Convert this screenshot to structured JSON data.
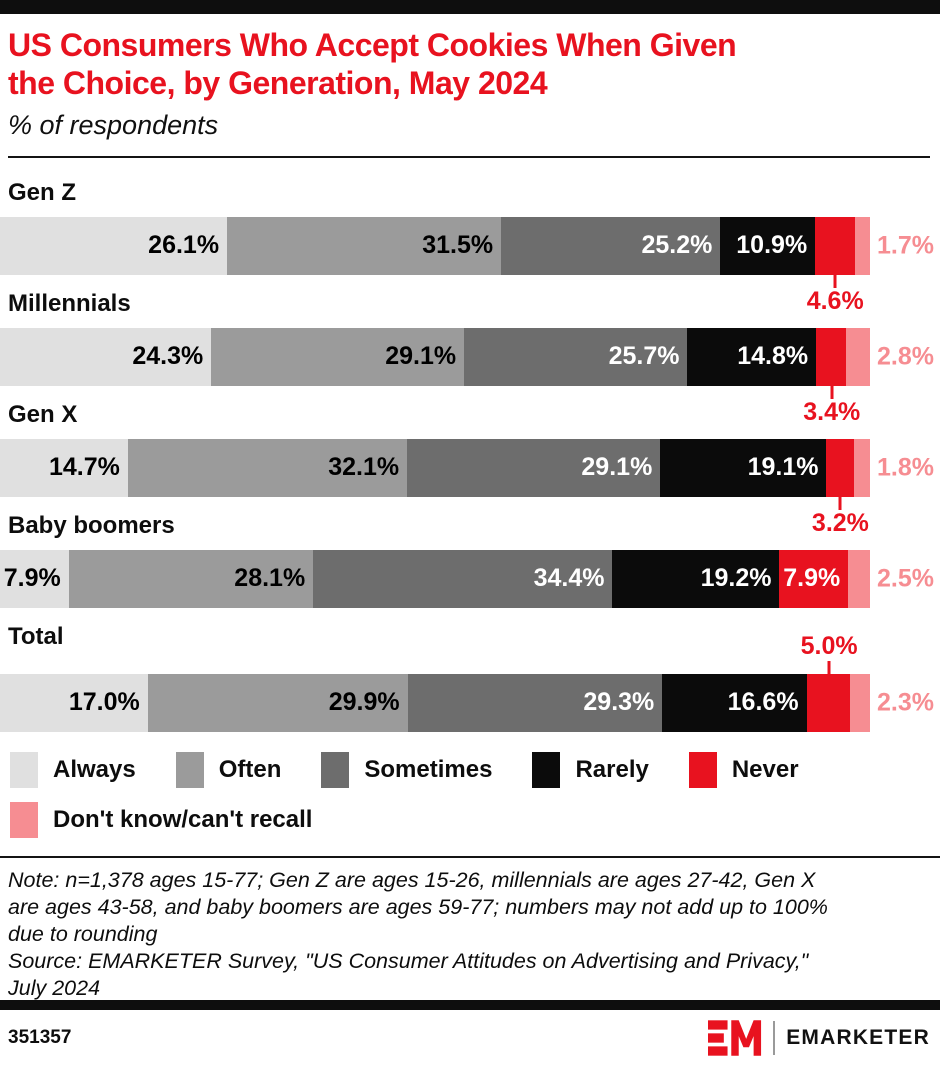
{
  "header": {
    "title_lines": [
      "US Consumers Who Accept Cookies When Given",
      "the Choice, by Generation, May 2024"
    ],
    "subtitle": "% of respondents"
  },
  "colors": {
    "brand_red": "#e8121f",
    "series": [
      "#e0e0e0",
      "#9b9b9b",
      "#6d6d6d",
      "#0b0b0b",
      "#e8121f",
      "#f68d92"
    ],
    "value_label_colors": [
      "#000000",
      "#000000",
      "#ffffff",
      "#ffffff",
      "#ffffff",
      "#f68d92"
    ],
    "never_callout_color": "#e8121f",
    "dont_know_label_color": "#f68d92",
    "accent_bar": "#0e0e0e"
  },
  "chart_data": {
    "type": "bar",
    "variant": "horizontal-stacked",
    "title": "US Consumers Who Accept Cookies When Given the Choice, by Generation, May 2024",
    "unit": "% of respondents",
    "x_range": [
      0,
      100
    ],
    "categories": [
      "Gen Z",
      "Millennials",
      "Gen X",
      "Baby boomers",
      "Total"
    ],
    "series": [
      {
        "name": "Always",
        "values": [
          26.1,
          24.3,
          14.7,
          7.9,
          17.0
        ]
      },
      {
        "name": "Often",
        "values": [
          31.5,
          29.1,
          32.1,
          28.1,
          29.9
        ]
      },
      {
        "name": "Sometimes",
        "values": [
          25.2,
          25.7,
          29.1,
          34.4,
          29.3
        ]
      },
      {
        "name": "Rarely",
        "values": [
          10.9,
          14.8,
          19.1,
          19.2,
          16.6
        ]
      },
      {
        "name": "Never",
        "values": [
          4.6,
          3.4,
          3.2,
          7.9,
          5.0
        ]
      },
      {
        "name": "Don't know/can't recall",
        "values": [
          1.7,
          2.8,
          1.8,
          2.5,
          2.3
        ]
      }
    ],
    "never_label_placement": [
      "below",
      "below",
      "below",
      "inside",
      "above"
    ],
    "dont_know_label_placement": "right-of-bar",
    "legend_position": "bottom"
  },
  "legend": {
    "rows": [
      [
        {
          "label": "Always",
          "color": "#e0e0e0"
        },
        {
          "label": "Often",
          "color": "#9b9b9b"
        },
        {
          "label": "Sometimes",
          "color": "#6d6d6d"
        },
        {
          "label": "Rarely",
          "color": "#0b0b0b"
        },
        {
          "label": "Never",
          "color": "#e8121f"
        }
      ],
      [
        {
          "label": "Don't know/can't recall",
          "color": "#f68d92"
        }
      ]
    ]
  },
  "notes": {
    "lines": [
      "Note: n=1,378 ages 15-77; Gen Z are ages 15-26, millennials are ages 27-42, Gen X",
      "are ages 43-58, and baby boomers are ages 59-77; numbers may not add up to 100%",
      "due to rounding"
    ],
    "source_lines": [
      "Source: EMARKETER Survey, \"US Consumer Attitudes on Advertising and Privacy,\"",
      "July 2024"
    ]
  },
  "footer": {
    "chart_id": "351357",
    "logo_mark": "EM",
    "wordmark": "EMARKETER"
  }
}
